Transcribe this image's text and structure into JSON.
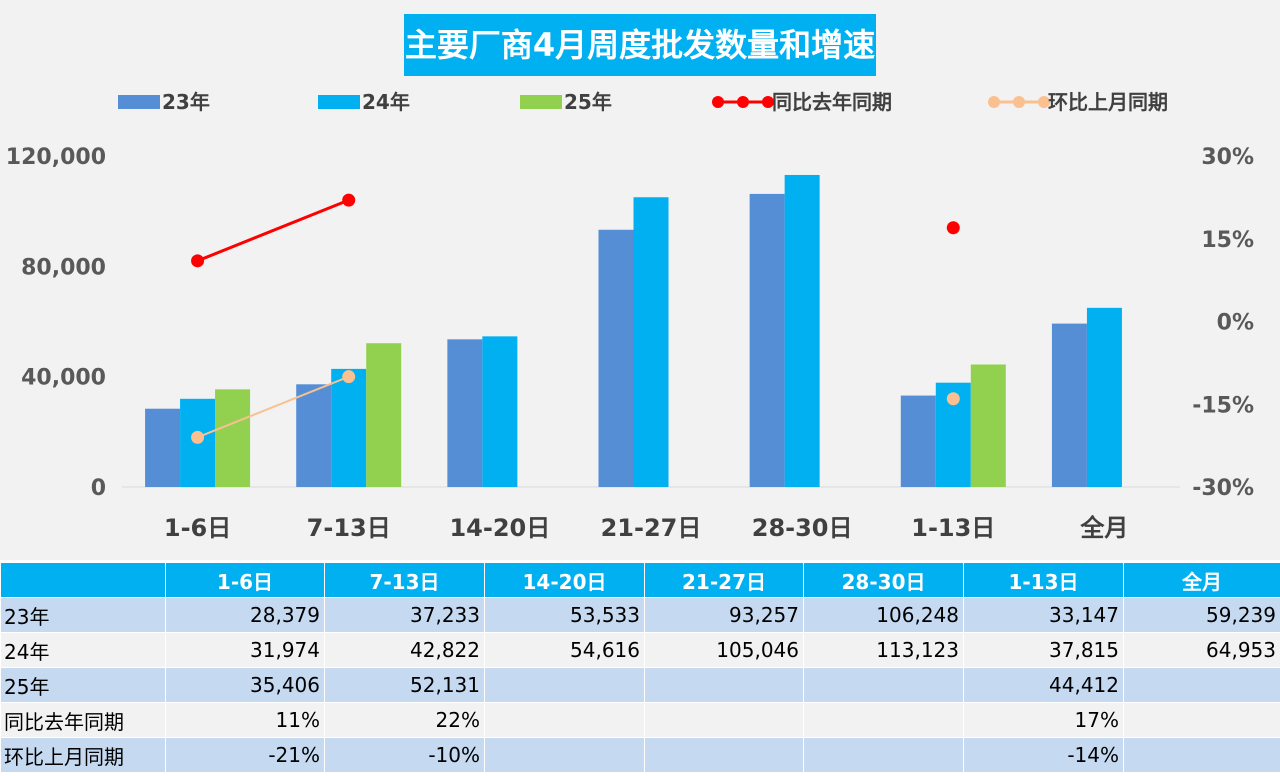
{
  "chart_data": {
    "type": "bar",
    "title": "主要厂商4月周度批发数量和增速",
    "categories": [
      "1-6日",
      "7-13日",
      "14-20日",
      "21-27日",
      "28-30日",
      "1-13日",
      "全月"
    ],
    "series": [
      {
        "name": "23年",
        "kind": "bar",
        "color": "#558ed5",
        "values": [
          28379,
          37233,
          53533,
          93257,
          106248,
          33147,
          59239
        ]
      },
      {
        "name": "24年",
        "kind": "bar",
        "color": "#00b0f0",
        "values": [
          31974,
          42822,
          54616,
          105046,
          113123,
          37815,
          64953
        ]
      },
      {
        "name": "25年",
        "kind": "bar",
        "color": "#92d050",
        "values": [
          35406,
          52131,
          null,
          null,
          null,
          44412,
          null
        ]
      },
      {
        "name": "同比去年同期",
        "kind": "line",
        "axis": "right",
        "color": "#ff0000",
        "values": [
          0.11,
          0.22,
          null,
          null,
          null,
          0.17,
          null
        ]
      },
      {
        "name": "环比上月同期",
        "kind": "line",
        "axis": "right",
        "color": "#fac090",
        "values": [
          -0.21,
          -0.1,
          null,
          null,
          null,
          -0.14,
          null
        ]
      }
    ],
    "ylim": [
      0,
      120000
    ],
    "yticks": [
      "0",
      "40,000",
      "80,000",
      "120,000"
    ],
    "y2lim": [
      -0.3,
      0.3
    ],
    "y2ticks": [
      "-30%",
      "-15%",
      "0%",
      "15%",
      "30%"
    ],
    "legend_position": "top",
    "grid": false
  },
  "table": {
    "header": [
      "",
      "1-6日",
      "7-13日",
      "14-20日",
      "21-27日",
      "28-30日",
      "1-13日",
      "全月"
    ],
    "rows": [
      {
        "label": "23年",
        "cells": [
          "28,379",
          "37,233",
          "53,533",
          "93,257",
          "106,248",
          "33,147",
          "59,239"
        ]
      },
      {
        "label": "24年",
        "cells": [
          "31,974",
          "42,822",
          "54,616",
          "105,046",
          "113,123",
          "37,815",
          "64,953"
        ]
      },
      {
        "label": "25年",
        "cells": [
          "35,406",
          "52,131",
          "",
          "",
          "",
          "44,412",
          ""
        ]
      },
      {
        "label": "同比去年同期",
        "cells": [
          "11%",
          "22%",
          "",
          "",
          "",
          "17%",
          ""
        ]
      },
      {
        "label": "环比上月同期",
        "cells": [
          "-21%",
          "-10%",
          "",
          "",
          "",
          "-14%",
          ""
        ]
      }
    ]
  }
}
